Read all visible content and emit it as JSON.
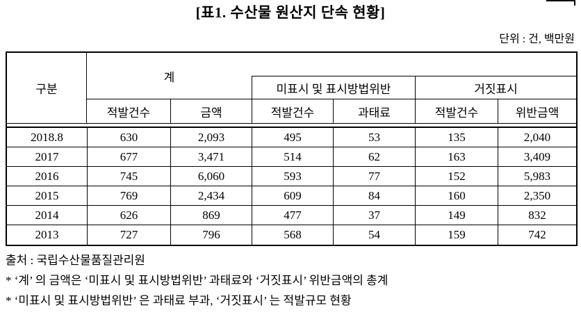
{
  "title": "[표1. 수산물 원산지 단속 현황]",
  "unit_note": "단위 : 건, 백만원",
  "table": {
    "corner_label": "구분",
    "groups": [
      {
        "label": "계",
        "sub": [
          "적발건수",
          "금액"
        ]
      },
      {
        "label": "미표시 및 표시방법위반",
        "sub": [
          "적발건수",
          "과태료"
        ]
      },
      {
        "label": "거짓표시",
        "sub": [
          "적발건수",
          "위반금액"
        ]
      }
    ],
    "rows": [
      {
        "label": "2018.8",
        "values": [
          "630",
          "2,093",
          "495",
          "53",
          "135",
          "2,040"
        ]
      },
      {
        "label": "2017",
        "values": [
          "677",
          "3,471",
          "514",
          "62",
          "163",
          "3,409"
        ]
      },
      {
        "label": "2016",
        "values": [
          "745",
          "6,060",
          "593",
          "77",
          "152",
          "5,983"
        ]
      },
      {
        "label": "2015",
        "values": [
          "769",
          "2,434",
          "609",
          "84",
          "160",
          "2,350"
        ]
      },
      {
        "label": "2014",
        "values": [
          "626",
          "869",
          "477",
          "37",
          "149",
          "832"
        ]
      },
      {
        "label": "2013",
        "values": [
          "727",
          "796",
          "568",
          "54",
          "159",
          "742"
        ]
      }
    ]
  },
  "footnotes": [
    "출처 : 국립수산물품질관리원",
    "* ‘계’ 의 금액은 ‘미표시 및 표시방법위반’ 과태료와 ‘거짓표시’ 위반금액의 총계",
    "* ‘미표시 및 표시방법위반’ 은 과태료 부과, ‘거짓표시’ 는 적발규모 현황"
  ]
}
